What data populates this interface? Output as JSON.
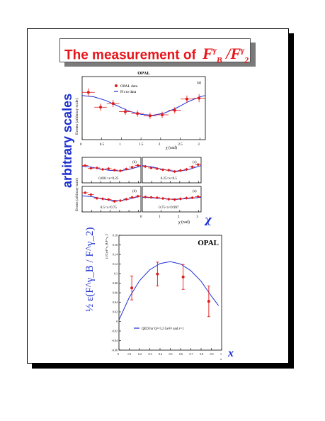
{
  "title": {
    "text": "The measurement of",
    "formula_f1": "F",
    "formula_sup1": "γ",
    "formula_sub1": "B",
    "formula_slash": " /",
    "formula_f2": "F",
    "formula_sup2": "γ",
    "formula_sub2": "2"
  },
  "side_labels": {
    "arbitrary_scales": "arbitrary scales",
    "chi": "χ",
    "x": "x",
    "epsilon_ratio": "½ ε(F^γ_B / F^γ_2)"
  },
  "colors": {
    "accent_red": "#e8161b",
    "accent_blue": "#1c2fcf",
    "data_red": "#e01b1b",
    "fit_blue": "#1f2fd6"
  },
  "chart_data": [
    {
      "id": "main",
      "type": "scatter",
      "title": "OPAL",
      "panel_label": "(a)",
      "xlabel": "χ   (rad)",
      "ylabel": "Events   (arbitrary scale)",
      "xlim": [
        0,
        3.14
      ],
      "ylim": [
        0,
        1.4
      ],
      "xticks": [
        0,
        0.5,
        1,
        1.5,
        2,
        2.5,
        3
      ],
      "xtick_labels": [
        "0",
        "0.5",
        "1",
        "1.5",
        "2",
        "2.5",
        "3"
      ],
      "legend": [
        "OPAL data",
        "Fit to data"
      ],
      "points": [
        {
          "x": 0.16,
          "y": 1.05,
          "xerr": 0.16,
          "yerr": 0.09
        },
        {
          "x": 0.47,
          "y": 0.72,
          "xerr": 0.16,
          "yerr": 0.08
        },
        {
          "x": 0.79,
          "y": 0.8,
          "xerr": 0.16,
          "yerr": 0.08
        },
        {
          "x": 1.1,
          "y": 0.62,
          "xerr": 0.16,
          "yerr": 0.07
        },
        {
          "x": 1.41,
          "y": 0.58,
          "xerr": 0.16,
          "yerr": 0.07
        },
        {
          "x": 1.73,
          "y": 0.53,
          "xerr": 0.16,
          "yerr": 0.07
        },
        {
          "x": 2.04,
          "y": 0.55,
          "xerr": 0.16,
          "yerr": 0.07
        },
        {
          "x": 2.36,
          "y": 0.65,
          "xerr": 0.16,
          "yerr": 0.07
        },
        {
          "x": 2.67,
          "y": 0.9,
          "xerr": 0.16,
          "yerr": 0.08
        },
        {
          "x": 2.98,
          "y": 0.92,
          "xerr": 0.16,
          "yerr": 0.09
        }
      ],
      "fit": [
        [
          0,
          0.98
        ],
        [
          0.3,
          0.95
        ],
        [
          0.6,
          0.87
        ],
        [
          0.9,
          0.75
        ],
        [
          1.2,
          0.63
        ],
        [
          1.5,
          0.56
        ],
        [
          1.8,
          0.54
        ],
        [
          2.1,
          0.59
        ],
        [
          2.4,
          0.7
        ],
        [
          2.7,
          0.84
        ],
        [
          3.0,
          0.95
        ],
        [
          3.14,
          0.98
        ]
      ]
    },
    {
      "id": "b",
      "type": "scatter",
      "panel_label": "(b)",
      "range_label": "0.001<x<0.25",
      "xlim": [
        0,
        3.14
      ],
      "ylim": [
        0,
        1.4
      ],
      "points": [
        [
          0.16,
          0.95
        ],
        [
          0.47,
          0.8
        ],
        [
          0.79,
          0.82
        ],
        [
          1.1,
          0.74
        ],
        [
          1.41,
          0.78
        ],
        [
          1.73,
          0.7
        ],
        [
          2.04,
          0.66
        ],
        [
          2.36,
          0.76
        ],
        [
          2.67,
          0.86
        ],
        [
          2.98,
          0.96
        ]
      ],
      "fit": [
        [
          0,
          0.92
        ],
        [
          0.5,
          0.86
        ],
        [
          1.0,
          0.76
        ],
        [
          1.5,
          0.68
        ],
        [
          2.0,
          0.66
        ],
        [
          2.5,
          0.74
        ],
        [
          3.14,
          0.92
        ]
      ]
    },
    {
      "id": "c",
      "type": "scatter",
      "panel_label": "(c)",
      "range_label": "0.25<x<0.5",
      "xlim": [
        0,
        3.14
      ],
      "ylim": [
        0,
        1.4
      ],
      "points": [
        [
          0.16,
          0.9
        ],
        [
          0.47,
          0.82
        ],
        [
          0.79,
          0.78
        ],
        [
          1.1,
          0.72
        ],
        [
          1.41,
          0.7
        ],
        [
          1.73,
          0.62
        ],
        [
          2.04,
          0.68
        ],
        [
          2.36,
          0.74
        ],
        [
          2.67,
          0.88
        ],
        [
          2.98,
          1.0
        ]
      ],
      "fit": [
        [
          0,
          0.95
        ],
        [
          0.5,
          0.88
        ],
        [
          1.0,
          0.76
        ],
        [
          1.5,
          0.66
        ],
        [
          2.0,
          0.64
        ],
        [
          2.5,
          0.74
        ],
        [
          3.14,
          0.95
        ]
      ]
    },
    {
      "id": "d",
      "type": "scatter",
      "panel_label": "(d)",
      "range_label": "0.5<x<0.75",
      "xlim": [
        0,
        3.14
      ],
      "ylim": [
        0,
        1.4
      ],
      "points": [
        [
          0.16,
          1.05
        ],
        [
          0.47,
          0.95
        ],
        [
          0.79,
          0.75
        ],
        [
          1.1,
          0.72
        ],
        [
          1.41,
          0.68
        ],
        [
          1.73,
          0.58
        ],
        [
          2.04,
          0.62
        ],
        [
          2.36,
          0.7
        ],
        [
          2.67,
          0.8
        ],
        [
          2.98,
          0.86
        ]
      ],
      "fit": [
        [
          0,
          0.88
        ],
        [
          0.5,
          0.84
        ],
        [
          1.0,
          0.74
        ],
        [
          1.5,
          0.64
        ],
        [
          2.0,
          0.62
        ],
        [
          2.5,
          0.7
        ],
        [
          3.14,
          0.88
        ]
      ]
    },
    {
      "id": "e",
      "type": "scatter",
      "panel_label": "(e)",
      "range_label": "0.75<x<0.997",
      "xlim": [
        0,
        3.14
      ],
      "ylim": [
        0,
        1.4
      ],
      "xticks": [
        0,
        1,
        2,
        3
      ],
      "xtick_labels": [
        "0",
        "1",
        "2",
        "3"
      ],
      "xlabel": "χ   (rad)",
      "points": [
        [
          0.16,
          0.82
        ],
        [
          0.47,
          0.8
        ],
        [
          0.79,
          0.78
        ],
        [
          1.1,
          0.74
        ],
        [
          1.41,
          0.7
        ],
        [
          1.73,
          0.68
        ],
        [
          2.04,
          0.72
        ],
        [
          2.36,
          0.76
        ],
        [
          2.67,
          0.78
        ],
        [
          2.98,
          0.84
        ]
      ],
      "fit": [
        [
          0,
          0.8
        ],
        [
          0.5,
          0.78
        ],
        [
          1.0,
          0.74
        ],
        [
          1.5,
          0.7
        ],
        [
          2.0,
          0.7
        ],
        [
          2.5,
          0.74
        ],
        [
          3.14,
          0.8
        ]
      ]
    },
    {
      "id": "bottom",
      "type": "scatter",
      "title": "OPAL",
      "ylabel": "(1/2)εF^γ_B/F^γ_2",
      "xlabel": "x",
      "xlim": [
        0,
        1
      ],
      "ylim": [
        -0.06,
        0.18
      ],
      "xticks": [
        0,
        0.1,
        0.2,
        0.3,
        0.4,
        0.5,
        0.6,
        0.7,
        0.8,
        0.9,
        1
      ],
      "xtick_labels": [
        "0",
        "0.1",
        "0.2",
        "0.3",
        "0.4",
        "0.5",
        "0.6",
        "0.7",
        "0.8",
        "0.9",
        "1"
      ],
      "yticks": [
        -0.06,
        -0.04,
        -0.02,
        0,
        0.02,
        0.04,
        0.06,
        0.08,
        0.1,
        0.12,
        0.14,
        0.16,
        0.18
      ],
      "ytick_labels": [
        "-0.06",
        "-0.04",
        "-0.02",
        "0",
        "0.02",
        "0.04",
        "0.06",
        "0.08",
        "0.1",
        "0.12",
        "0.14",
        "0.16",
        "0.18"
      ],
      "legend": [
        "QED for Q²=5.2 GeV² and ε=1"
      ],
      "points": [
        {
          "x": 0.125,
          "y": 0.07,
          "xerr": 0.0,
          "yerr": 0.025
        },
        {
          "x": 0.375,
          "y": 0.099,
          "xerr": 0.0,
          "yerr": 0.025
        },
        {
          "x": 0.625,
          "y": 0.093,
          "xerr": 0.0,
          "yerr": 0.026
        },
        {
          "x": 0.875,
          "y": 0.042,
          "xerr": 0.0,
          "yerr": 0.032
        }
      ],
      "curve": [
        [
          0.0,
          0.003
        ],
        [
          0.1,
          0.05
        ],
        [
          0.2,
          0.085
        ],
        [
          0.3,
          0.108
        ],
        [
          0.4,
          0.121
        ],
        [
          0.5,
          0.125
        ],
        [
          0.6,
          0.12
        ],
        [
          0.7,
          0.106
        ],
        [
          0.8,
          0.084
        ],
        [
          0.9,
          0.053
        ],
        [
          0.97,
          0.033
        ]
      ]
    }
  ]
}
